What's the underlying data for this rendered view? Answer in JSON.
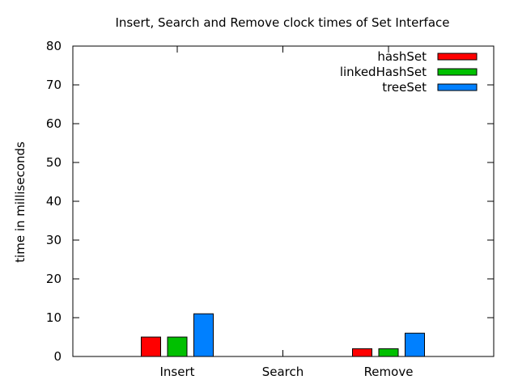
{
  "chart_data": {
    "type": "bar",
    "title": "Insert, Search and Remove clock times of Set Interface",
    "xlabel": "",
    "ylabel": "time in milliseconds",
    "categories": [
      "Insert",
      "Search",
      "Remove"
    ],
    "ylim": [
      0,
      80
    ],
    "yticks": [
      0,
      10,
      20,
      30,
      40,
      50,
      60,
      70,
      80
    ],
    "series": [
      {
        "name": "hashSet",
        "color": "#ff0000",
        "values": [
          5,
          0,
          2
        ]
      },
      {
        "name": "linkedHashSet",
        "color": "#00c000",
        "values": [
          5,
          0,
          2
        ]
      },
      {
        "name": "treeSet",
        "color": "#0080ff",
        "values": [
          11,
          0,
          6
        ]
      }
    ],
    "legend_position": "top-right",
    "grid": false
  }
}
